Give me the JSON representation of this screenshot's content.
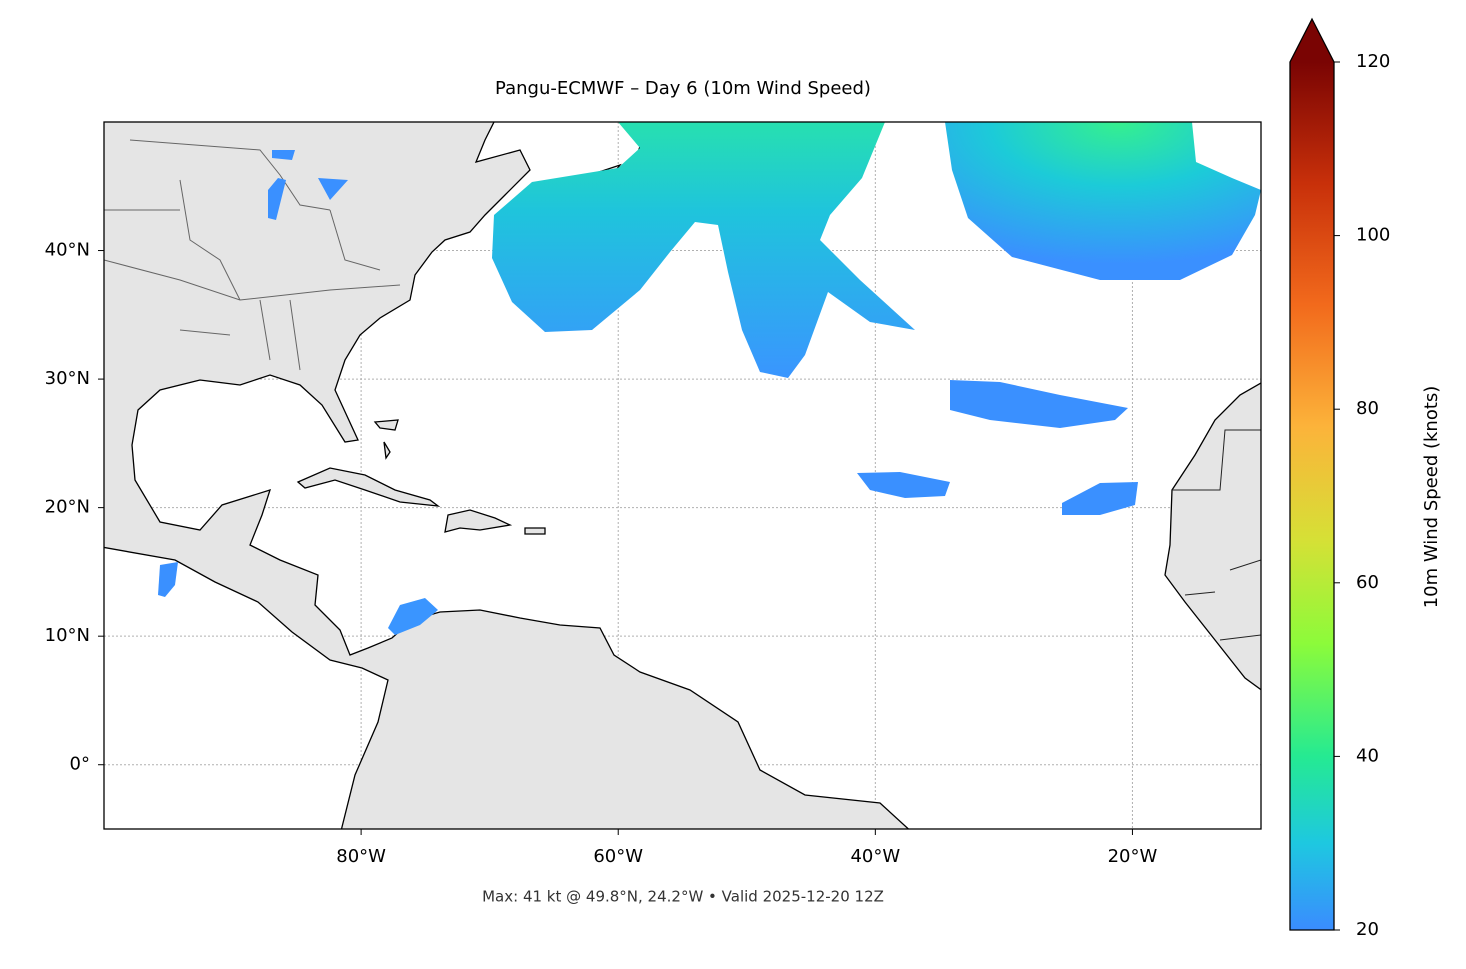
{
  "title": "Pangu-ECMWF – Day 6 (10m Wind Speed)",
  "footnote": "Max: 41 kt @ 49.8°N, 24.2°W • Valid 2025-12-20 12Z",
  "map": {
    "xlim": [
      -100,
      -10
    ],
    "ylim": [
      -5,
      50
    ],
    "xticks": [
      {
        "value": -80,
        "label": "80°W"
      },
      {
        "value": -60,
        "label": "60°W"
      },
      {
        "value": -40,
        "label": "40°W"
      },
      {
        "value": -20,
        "label": "20°W"
      }
    ],
    "yticks": [
      {
        "value": 0,
        "label": "0°"
      },
      {
        "value": 10,
        "label": "10°N"
      },
      {
        "value": 20,
        "label": "20°N"
      },
      {
        "value": 30,
        "label": "30°N"
      },
      {
        "value": 40,
        "label": "40°N"
      }
    ],
    "grid": true
  },
  "colorbar": {
    "label": "10m Wind Speed (knots)",
    "lim": [
      20,
      120
    ],
    "ticks": [
      20,
      40,
      60,
      80,
      100,
      120
    ]
  }
}
